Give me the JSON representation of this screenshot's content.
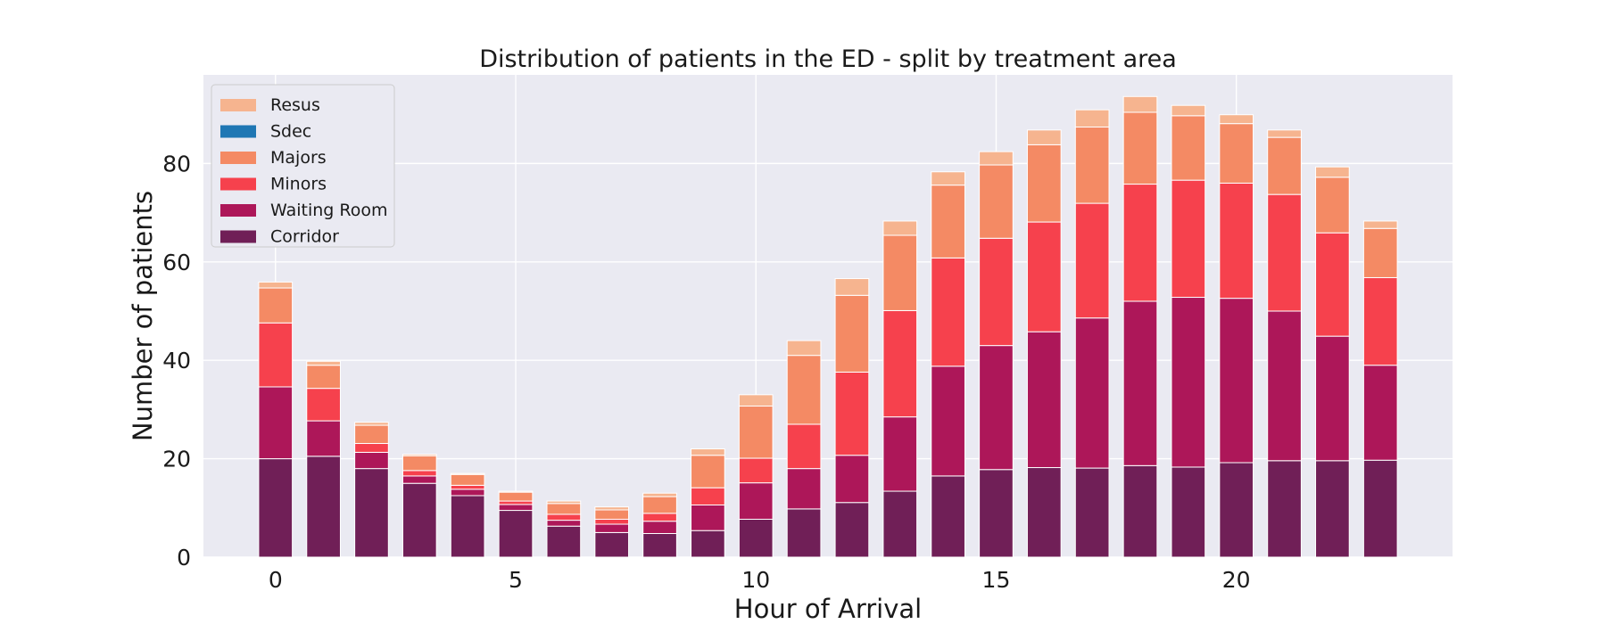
{
  "chart_data": {
    "type": "bar",
    "stacked": true,
    "title": "Distribution of patients in the ED - split by treatment area",
    "xlabel": "Hour of Arrival",
    "ylabel": "Number of patients",
    "x": [
      0,
      1,
      2,
      3,
      4,
      5,
      6,
      7,
      8,
      9,
      10,
      11,
      12,
      13,
      14,
      15,
      16,
      17,
      18,
      19,
      20,
      21,
      22,
      23
    ],
    "xlim": [
      -1.5,
      24.5
    ],
    "ylim": [
      0,
      98
    ],
    "xticks": [
      0,
      5,
      10,
      15,
      20
    ],
    "yticks": [
      0,
      20,
      40,
      60,
      80
    ],
    "grid": true,
    "legend_position": "top-left",
    "series": [
      {
        "name": "Corridor",
        "color": "#701f57",
        "values": [
          20.0,
          20.5,
          18.0,
          15.0,
          12.5,
          9.5,
          6.3,
          5.0,
          4.8,
          5.4,
          7.7,
          9.8,
          11.1,
          13.4,
          16.5,
          17.8,
          18.2,
          18.1,
          18.6,
          18.3,
          19.2,
          19.6,
          19.6,
          19.7
        ]
      },
      {
        "name": "Waiting Room",
        "color": "#ad1759",
        "values": [
          14.6,
          7.2,
          3.3,
          1.5,
          1.3,
          1.2,
          1.2,
          1.7,
          2.5,
          5.2,
          7.4,
          8.2,
          9.6,
          15.1,
          22.3,
          25.2,
          27.6,
          30.5,
          33.4,
          34.5,
          33.4,
          30.4,
          25.3,
          19.3
        ]
      },
      {
        "name": "Minors",
        "color": "#f6414d",
        "values": [
          13.0,
          6.6,
          1.8,
          1.1,
          0.8,
          0.7,
          1.2,
          1.0,
          1.6,
          3.5,
          5.0,
          9.0,
          16.9,
          21.6,
          22.0,
          21.8,
          22.3,
          23.3,
          23.8,
          23.8,
          23.4,
          23.7,
          21.0,
          17.8
        ]
      },
      {
        "name": "Majors",
        "color": "#f48a64",
        "values": [
          7.1,
          4.7,
          3.7,
          3.0,
          2.2,
          1.8,
          2.2,
          1.9,
          3.4,
          6.6,
          10.6,
          14.0,
          15.6,
          15.3,
          14.8,
          14.9,
          15.7,
          15.5,
          14.6,
          13.1,
          12.1,
          11.6,
          11.3,
          10.0
        ]
      },
      {
        "name": "Sdec",
        "color": "#1f77b4",
        "values": [
          0,
          0,
          0,
          0,
          0,
          0,
          0,
          0,
          0,
          0,
          0,
          0,
          0,
          0,
          0,
          0,
          0,
          0,
          0,
          0,
          0,
          0,
          0,
          0
        ]
      },
      {
        "name": "Resus",
        "color": "#f6b48f",
        "values": [
          1.2,
          0.8,
          0.6,
          0.3,
          0.2,
          0.2,
          0.5,
          0.6,
          0.7,
          1.3,
          2.3,
          3.0,
          3.4,
          2.9,
          2.7,
          2.7,
          3.0,
          3.5,
          3.2,
          2.1,
          1.8,
          1.5,
          2.1,
          1.5
        ]
      }
    ],
    "legend_order": [
      "Resus",
      "Sdec",
      "Majors",
      "Minors",
      "Waiting Room",
      "Corridor"
    ]
  }
}
